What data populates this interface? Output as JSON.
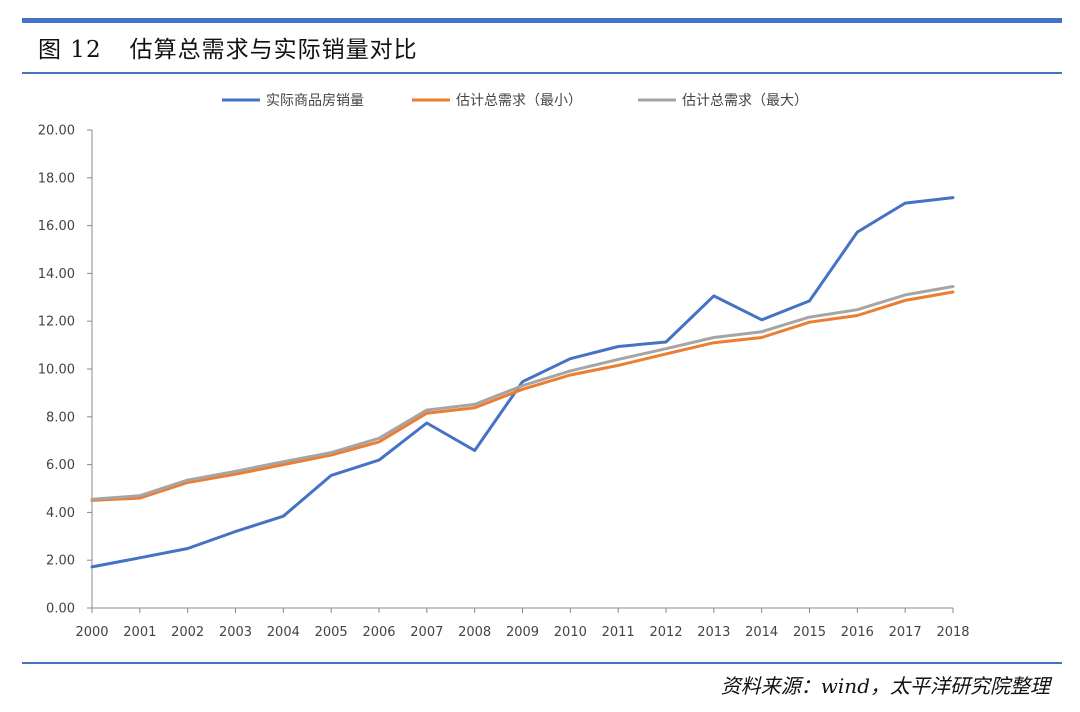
{
  "figure": {
    "label": "图 12",
    "title": "估算总需求与实际销量对比",
    "source": "资料来源：wind，太平洋研究院整理"
  },
  "chart_data": {
    "type": "line",
    "title": "",
    "xlabel": "",
    "ylabel": "",
    "x": [
      "2000",
      "2001",
      "2002",
      "2003",
      "2004",
      "2005",
      "2006",
      "2007",
      "2008",
      "2009",
      "2010",
      "2011",
      "2012",
      "2013",
      "2014",
      "2015",
      "2016",
      "2017",
      "2018"
    ],
    "ylim": [
      0,
      20
    ],
    "yticks": [
      "0.00",
      "2.00",
      "4.00",
      "6.00",
      "8.00",
      "10.00",
      "12.00",
      "14.00",
      "16.00",
      "18.00",
      "20.00"
    ],
    "grid": false,
    "legend_position": "top",
    "series": [
      {
        "name": "实际商品房销量",
        "color": "#4472c4",
        "values": [
          1.72,
          2.1,
          2.49,
          3.2,
          3.84,
          5.55,
          6.19,
          7.74,
          6.59,
          9.47,
          10.43,
          10.94,
          11.13,
          13.06,
          12.06,
          12.85,
          15.73,
          16.94,
          17.17
        ]
      },
      {
        "name": "估计总需求（最小）",
        "color": "#ed7d31",
        "values": [
          4.5,
          4.6,
          5.25,
          5.6,
          6.0,
          6.4,
          6.95,
          8.15,
          8.38,
          9.15,
          9.75,
          10.15,
          10.63,
          11.1,
          11.32,
          11.96,
          12.24,
          12.87,
          13.22
        ]
      },
      {
        "name": "估计总需求（最大）",
        "color": "#a5a5a5",
        "values": [
          4.55,
          4.7,
          5.35,
          5.72,
          6.12,
          6.5,
          7.1,
          8.28,
          8.52,
          9.3,
          9.92,
          10.4,
          10.85,
          11.32,
          11.56,
          12.17,
          12.48,
          13.1,
          13.45
        ]
      }
    ]
  }
}
